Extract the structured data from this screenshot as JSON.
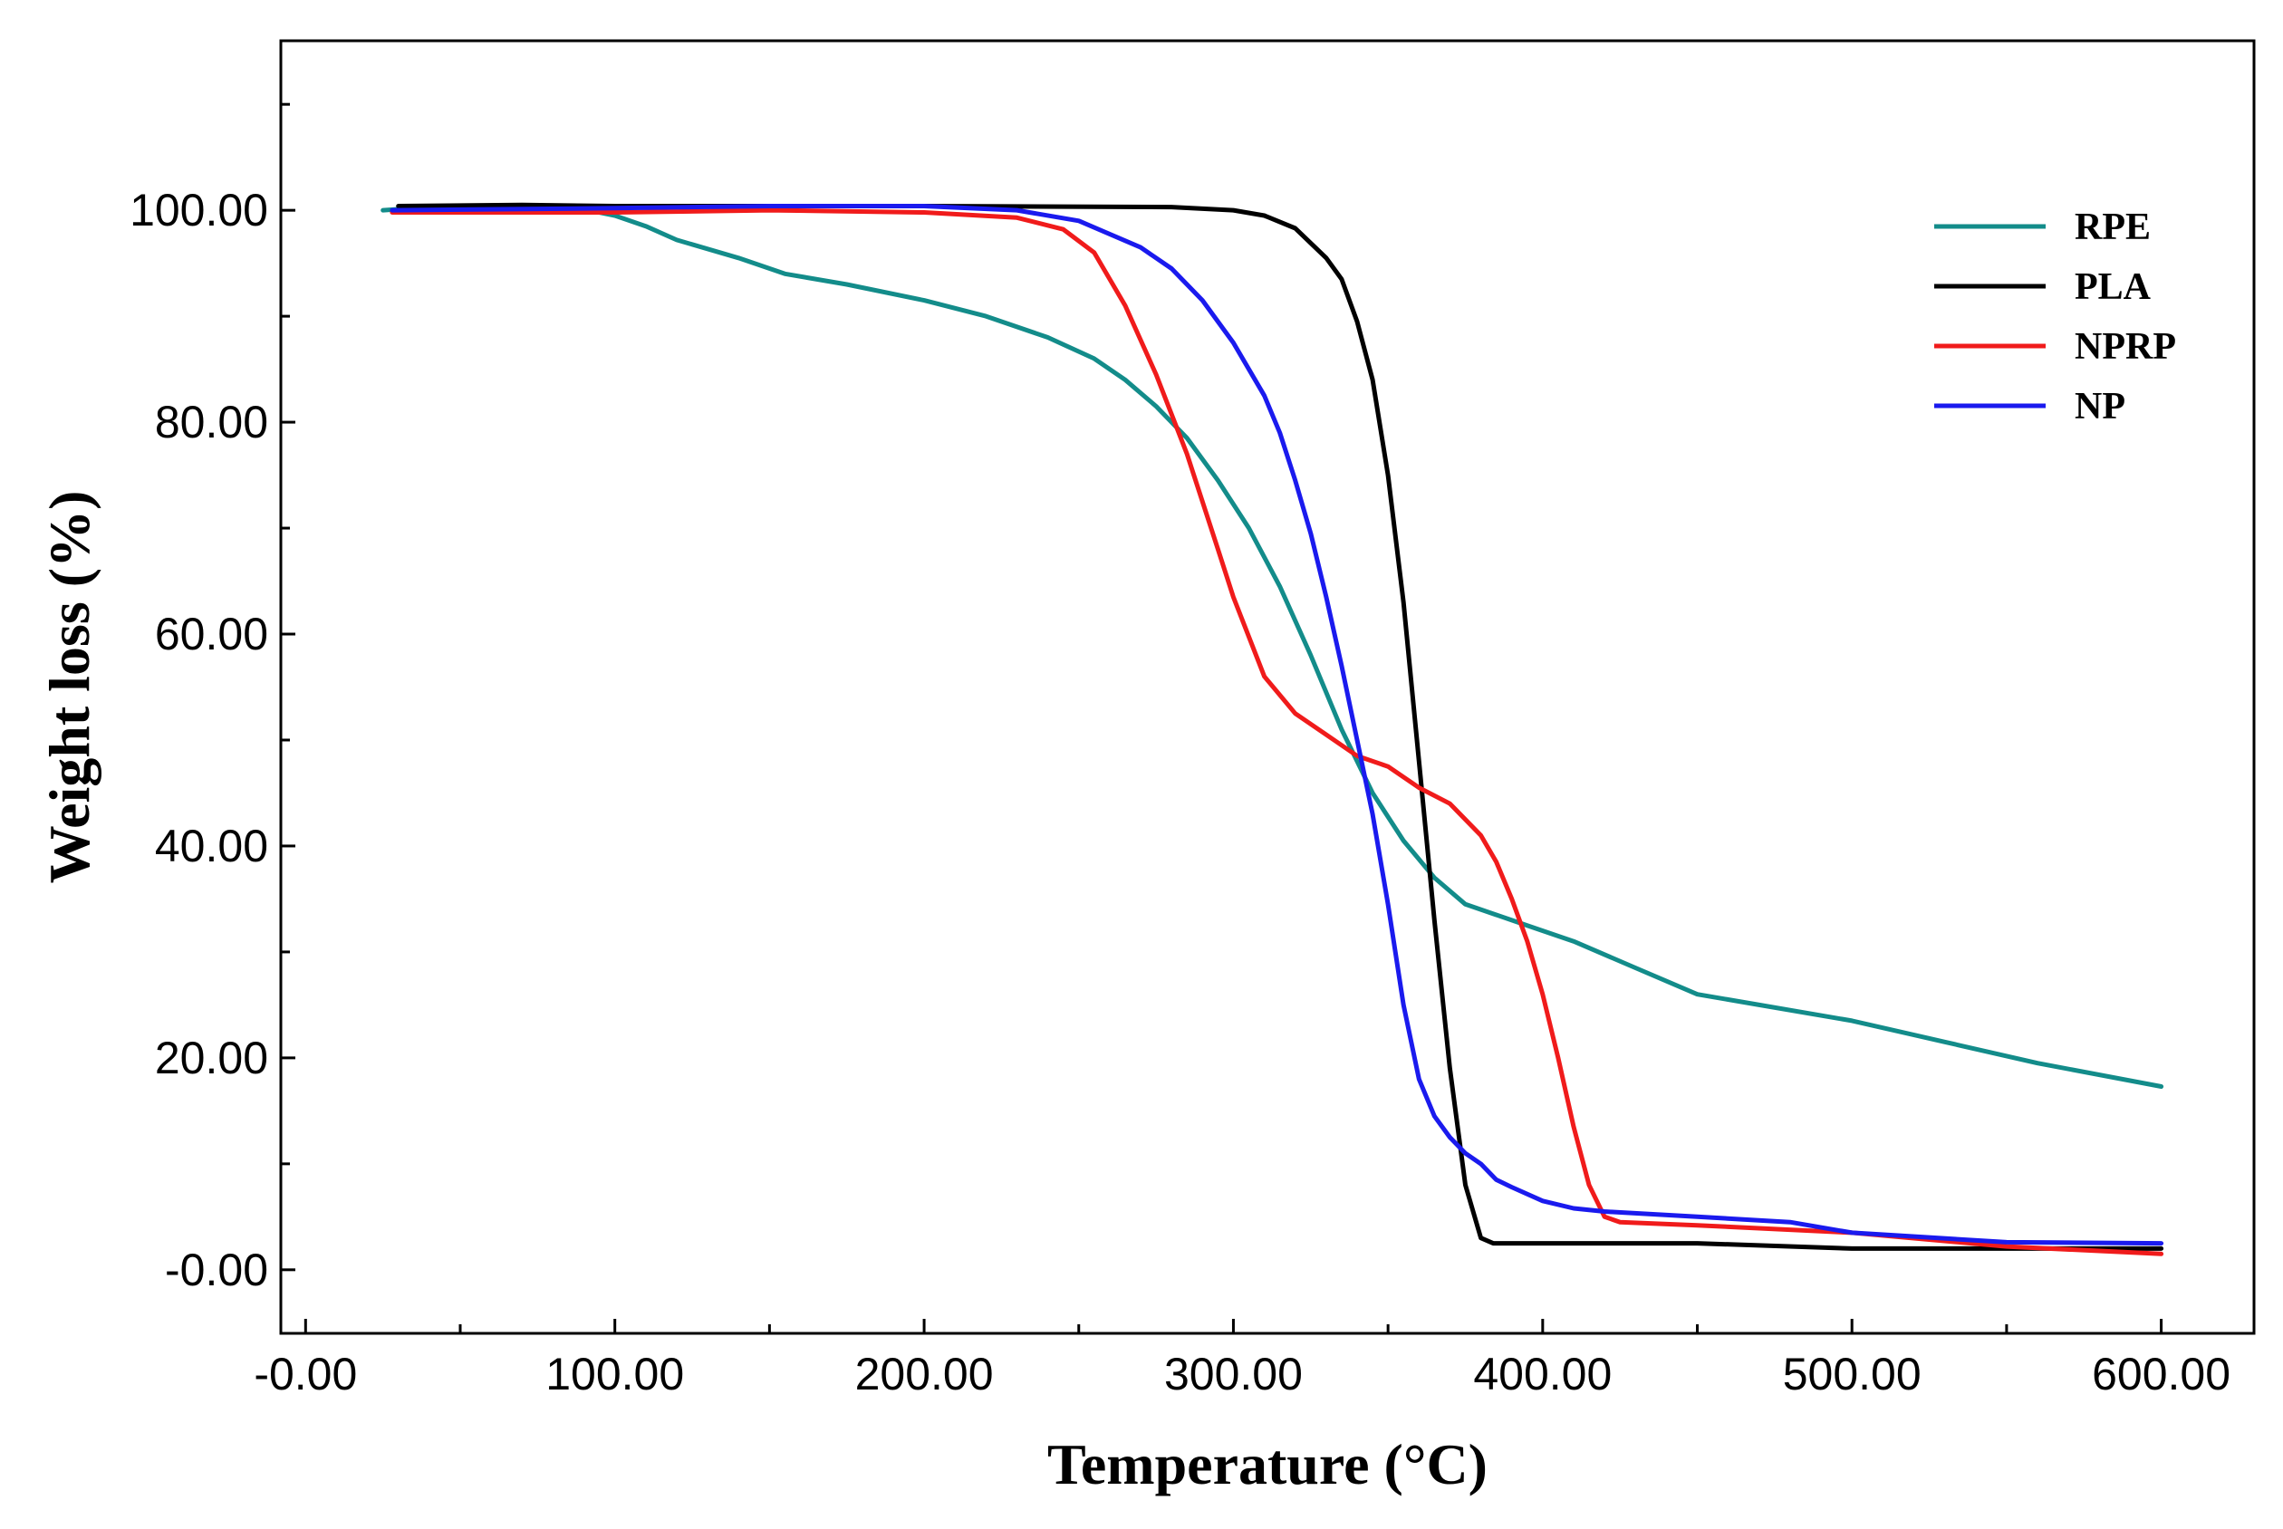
{
  "chart_data": {
    "type": "line",
    "title": "",
    "xlabel": "Temperature (°C)",
    "ylabel": "Weight loss (%)",
    "xlim": [
      -8,
      630
    ],
    "ylim": [
      -6,
      116
    ],
    "x_ticks": [
      0,
      100,
      200,
      300,
      400,
      500,
      600
    ],
    "x_tick_labels": [
      "-0.00",
      "100.00",
      "200.00",
      "300.00",
      "400.00",
      "500.00",
      "600.00"
    ],
    "y_ticks": [
      0,
      20,
      40,
      60,
      80,
      100
    ],
    "y_tick_labels": [
      "-0.00",
      "20.00",
      "40.00",
      "60.00",
      "80.00",
      "100.00"
    ],
    "grid": false,
    "legend_position": "top-right",
    "series": [
      {
        "name": "RPE",
        "color": "#138c8a",
        "x": [
          25,
          40,
          60,
          80,
          95,
          100,
          110,
          120,
          140,
          155,
          175,
          200,
          220,
          240,
          255,
          265,
          275,
          285,
          295,
          305,
          315,
          325,
          335,
          345,
          355,
          365,
          375,
          385,
          395,
          410,
          430,
          450,
          470,
          500,
          530,
          560,
          600
        ],
        "y": [
          100,
          100.3,
          100.2,
          100,
          99.8,
          99.5,
          98.5,
          97.2,
          95.5,
          94,
          93,
          91.5,
          90,
          88,
          86,
          84,
          81.5,
          78.5,
          74.5,
          70,
          64.5,
          58,
          51,
          45,
          40.5,
          37,
          34.5,
          33.5,
          32.5,
          31,
          28.5,
          26,
          25,
          23.5,
          21.5,
          19.5,
          17.3
        ]
      },
      {
        "name": "PLA",
        "color": "#000000",
        "x": [
          30,
          70,
          100,
          200,
          280,
          300,
          310,
          320,
          330,
          335,
          340,
          345,
          350,
          355,
          360,
          365,
          370,
          375,
          380,
          384,
          388,
          400,
          450,
          500,
          550,
          600
        ],
        "y": [
          100.4,
          100.5,
          100.4,
          100.4,
          100.3,
          100,
          99.5,
          98.3,
          95.5,
          93.5,
          89.5,
          84,
          75,
          63,
          48,
          33,
          19,
          8,
          3,
          2.5,
          2.5,
          2.5,
          2.5,
          2,
          2,
          2
        ]
      },
      {
        "name": "NPRP",
        "color": "#f01b1b",
        "x": [
          28,
          100,
          150,
          200,
          230,
          245,
          255,
          265,
          275,
          285,
          290,
          295,
          300,
          310,
          320,
          330,
          340,
          350,
          360,
          370,
          380,
          385,
          390,
          395,
          400,
          405,
          410,
          415,
          420,
          425,
          450,
          500,
          550,
          600
        ],
        "y": [
          99.8,
          99.8,
          100,
          99.8,
          99.3,
          98.2,
          96,
          91,
          84.5,
          77,
          72.5,
          68,
          63.5,
          56,
          52.5,
          50.5,
          48.5,
          47.5,
          45.5,
          44,
          41,
          38.5,
          35,
          31,
          26,
          20,
          13.5,
          8,
          5,
          4.5,
          4.2,
          3.5,
          2.2,
          1.5
        ]
      },
      {
        "name": "NP",
        "color": "#1a1aee",
        "x": [
          28,
          100,
          150,
          200,
          230,
          250,
          270,
          280,
          290,
          300,
          310,
          315,
          320,
          325,
          330,
          335,
          340,
          345,
          350,
          355,
          360,
          365,
          370,
          375,
          380,
          385,
          390,
          400,
          410,
          420,
          450,
          480,
          500,
          550,
          600
        ],
        "y": [
          100,
          100.2,
          100.4,
          100.4,
          100,
          99,
          96.5,
          94.5,
          91.5,
          87.5,
          82.5,
          79,
          74.5,
          69.5,
          63.5,
          57,
          50,
          43,
          34.5,
          25,
          18,
          14.5,
          12.5,
          11,
          10,
          8.5,
          7.8,
          6.5,
          5.8,
          5.5,
          5,
          4.5,
          3.5,
          2.6,
          2.5
        ]
      }
    ]
  }
}
